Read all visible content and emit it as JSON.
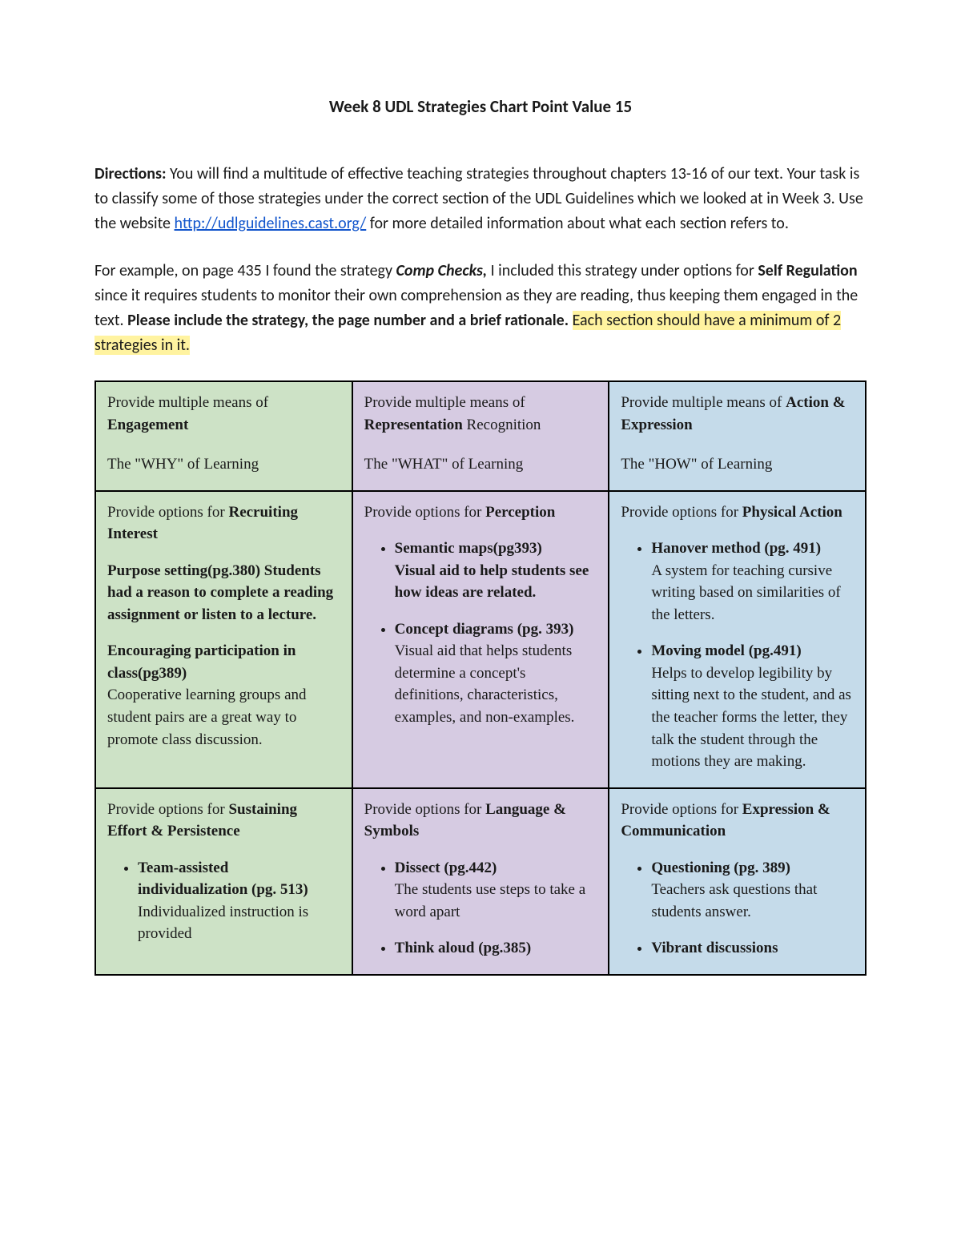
{
  "doc": {
    "title": "Week 8 UDL Strategies Chart Point Value 15",
    "directions_label": "Directions:",
    "directions_1": " You will find a multitude of effective teaching strategies throughout chapters 13-16 of our text. Your task is to classify some of those strategies under the correct section of the UDL Guidelines which we looked at in Week 3. Use the website ",
    "link_text": "http://udlguidelines.cast.org/",
    "link_href": "http://udlguidelines.cast.org/",
    "directions_2": "  for more detailed information about what each section refers to.",
    "example_pre": "For example, on page 435 I found the strategy ",
    "example_strategy": "Comp Checks,",
    "example_mid": " I included this strategy under options for ",
    "example_section": "Self Regulation",
    "example_post1": " since it requires students to monitor their own comprehension as they are reading, thus keeping them engaged in the text. ",
    "example_bold_tail": "Please include the strategy, the page number and a brief rationale.",
    "example_highlight": "Each section should have a minimum of 2 strategies in it."
  },
  "colors": {
    "engagement": "#cde2c6",
    "representation": "#d6cbe2",
    "action": "#c5dbea",
    "border": "#000000",
    "highlight": "#fff3a0",
    "link": "#1155cc",
    "text": "#1a1a1a",
    "background": "#ffffff"
  },
  "table": {
    "headers": [
      {
        "prefix": "Provide multiple means of ",
        "key": "Engagement",
        "suffix": "",
        "sub": "The \"WHY\" of Learning",
        "col_class": "col-eng"
      },
      {
        "prefix": "Provide multiple means of ",
        "key": "Representation",
        "suffix": " Recognition",
        "sub": "The \"WHAT\" of Learning",
        "col_class": "col-rep"
      },
      {
        "prefix": "Provide multiple means of ",
        "key": "Action & Expression",
        "suffix": "",
        "sub": "The \"HOW\" of Learning",
        "col_class": "col-act"
      }
    ],
    "rows": [
      [
        {
          "col_class": "col-eng",
          "option_prefix": "Provide options for ",
          "option_key": "Recruiting Interest",
          "mode": "blocks",
          "blocks": [
            {
              "title": "Purpose setting(pg.380)",
              "title_tail": "Students had a reason to complete a reading assignment or listen to a lecture."
            },
            {
              "title": "Encouraging participation in class(pg389)",
              "body": "Cooperative learning groups and student pairs are a great way to promote class discussion."
            }
          ]
        },
        {
          "col_class": "col-rep",
          "option_prefix": "Provide options for ",
          "option_key": "Perception",
          "mode": "bullets",
          "bullets": [
            {
              "title": "Semantic maps(pg393)",
              "title_tail": "Visual aid to help students see how ideas are related."
            },
            {
              "title": "Concept diagrams (pg. 393)",
              "body": "Visual aid that helps students determine a concept's definitions, characteristics, examples, and non-examples."
            }
          ]
        },
        {
          "col_class": "col-act",
          "option_prefix": "Provide options for ",
          "option_key": "Physical Action",
          "mode": "bullets",
          "bullets": [
            {
              "title": "Hanover method (pg. 491)",
              "body": "A system for teaching cursive writing based on similarities of the letters."
            },
            {
              "title": "Moving model (pg.491)",
              "body": "Helps to develop legibility by sitting next to the student, and as the teacher forms the letter, they talk the student through the motions they are making."
            }
          ]
        }
      ],
      [
        {
          "col_class": "col-eng",
          "option_prefix": "Provide options for ",
          "option_key": "Sustaining Effort & Persistence",
          "mode": "bullets",
          "bullets": [
            {
              "title": "Team-assisted individualization (pg. 513)",
              "body": "Individualized instruction is provided"
            }
          ]
        },
        {
          "col_class": "col-rep",
          "option_prefix": "Provide options for ",
          "option_key": "Language & Symbols",
          "mode": "bullets",
          "bullets": [
            {
              "title": "Dissect (pg.442)",
              "body": "The students use steps to take a word apart"
            },
            {
              "title": "Think aloud (pg.385)"
            }
          ]
        },
        {
          "col_class": "col-act",
          "option_prefix": "Provide options for ",
          "option_key": "Expression & Communication",
          "mode": "bullets",
          "bullets": [
            {
              "title": "Questioning (pg. 389)",
              "body": "Teachers ask questions that students answer."
            },
            {
              "title": "Vibrant discussions"
            }
          ]
        }
      ]
    ]
  }
}
